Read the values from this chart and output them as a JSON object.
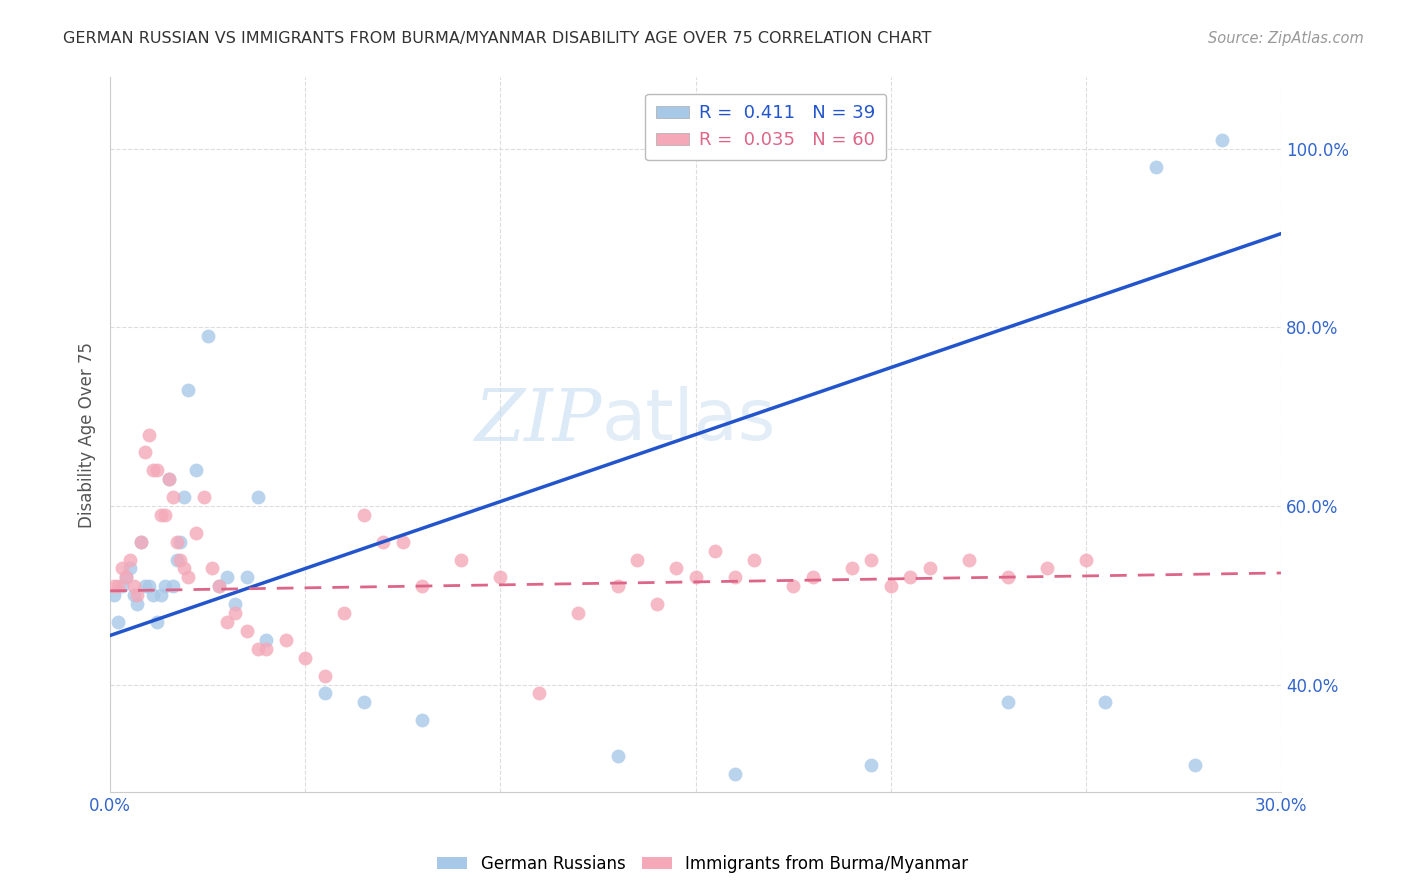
{
  "title": "GERMAN RUSSIAN VS IMMIGRANTS FROM BURMA/MYANMAR DISABILITY AGE OVER 75 CORRELATION CHART",
  "source": "Source: ZipAtlas.com",
  "ylabel": "Disability Age Over 75",
  "xlim": [
    0.0,
    0.3
  ],
  "ylim": [
    0.28,
    1.08
  ],
  "blue_R": 0.411,
  "blue_N": 39,
  "pink_R": 0.035,
  "pink_N": 60,
  "blue_color": "#a8c8e8",
  "pink_color": "#f4a8b8",
  "blue_line_color": "#2255cc",
  "pink_line_color": "#dd6688",
  "legend_label_blue": "German Russians",
  "legend_label_pink": "Immigrants from Burma/Myanmar",
  "blue_scatter_x": [
    0.001,
    0.002,
    0.003,
    0.004,
    0.005,
    0.006,
    0.007,
    0.008,
    0.009,
    0.01,
    0.011,
    0.012,
    0.013,
    0.014,
    0.015,
    0.016,
    0.017,
    0.018,
    0.019,
    0.02,
    0.022,
    0.025,
    0.028,
    0.03,
    0.032,
    0.035,
    0.038,
    0.04,
    0.055,
    0.065,
    0.08,
    0.13,
    0.16,
    0.195,
    0.23,
    0.255,
    0.268,
    0.278,
    0.285
  ],
  "blue_scatter_y": [
    0.5,
    0.47,
    0.51,
    0.52,
    0.53,
    0.5,
    0.49,
    0.56,
    0.51,
    0.51,
    0.5,
    0.47,
    0.5,
    0.51,
    0.63,
    0.51,
    0.54,
    0.56,
    0.61,
    0.73,
    0.64,
    0.79,
    0.51,
    0.52,
    0.49,
    0.52,
    0.61,
    0.45,
    0.39,
    0.38,
    0.36,
    0.32,
    0.3,
    0.31,
    0.38,
    0.38,
    0.98,
    0.31,
    1.01
  ],
  "pink_scatter_x": [
    0.001,
    0.002,
    0.003,
    0.004,
    0.005,
    0.006,
    0.007,
    0.008,
    0.009,
    0.01,
    0.011,
    0.012,
    0.013,
    0.014,
    0.015,
    0.016,
    0.017,
    0.018,
    0.019,
    0.02,
    0.022,
    0.024,
    0.026,
    0.028,
    0.03,
    0.032,
    0.035,
    0.038,
    0.04,
    0.045,
    0.05,
    0.055,
    0.06,
    0.065,
    0.07,
    0.075,
    0.08,
    0.09,
    0.1,
    0.11,
    0.12,
    0.13,
    0.135,
    0.14,
    0.145,
    0.15,
    0.155,
    0.16,
    0.165,
    0.175,
    0.18,
    0.19,
    0.195,
    0.2,
    0.205,
    0.21,
    0.22,
    0.23,
    0.24,
    0.25
  ],
  "pink_scatter_y": [
    0.51,
    0.51,
    0.53,
    0.52,
    0.54,
    0.51,
    0.5,
    0.56,
    0.66,
    0.68,
    0.64,
    0.64,
    0.59,
    0.59,
    0.63,
    0.61,
    0.56,
    0.54,
    0.53,
    0.52,
    0.57,
    0.61,
    0.53,
    0.51,
    0.47,
    0.48,
    0.46,
    0.44,
    0.44,
    0.45,
    0.43,
    0.41,
    0.48,
    0.59,
    0.56,
    0.56,
    0.51,
    0.54,
    0.52,
    0.39,
    0.48,
    0.51,
    0.54,
    0.49,
    0.53,
    0.52,
    0.55,
    0.52,
    0.54,
    0.51,
    0.52,
    0.53,
    0.54,
    0.51,
    0.52,
    0.53,
    0.54,
    0.52,
    0.53,
    0.54
  ]
}
